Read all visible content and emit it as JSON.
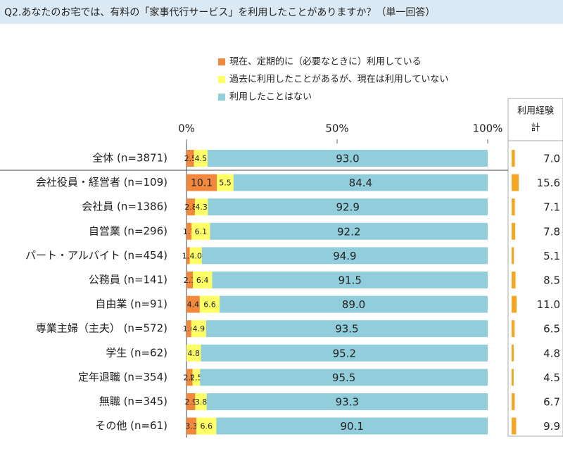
{
  "chart_data": {
    "type": "stacked-bar-horizontal",
    "title": "Q2.あなたのお宅では、有料の「家事代行サービス」を利用したことがありますか？（単一回答）",
    "categories": [
      "全体 (n=3871)",
      "会社役員・経営者 (n=109)",
      "会社員 (n=1386)",
      "自営業 (n=296)",
      "パート・アルバイト (n=454)",
      "公務員 (n=141)",
      "自由業 (n=91)",
      "専業主婦（主夫） (n=572)",
      "学生 (n=62)",
      "定年退職 (n=354)",
      "無職 (n=345)",
      "その他 (n=61)"
    ],
    "series": [
      {
        "name": "現在、定期的に（必要なときに）利用している",
        "color": "#f0883e",
        "values": [
          2.5,
          10.1,
          2.8,
          1.7,
          1.1,
          2.1,
          4.4,
          1.6,
          null,
          2.0,
          2.9,
          3.3
        ],
        "value_labels": [
          "2.5",
          "10.1",
          "2.8",
          "1.7",
          "1.1",
          "2.1",
          "4.4",
          "1.6",
          null,
          "2.0",
          "2.9",
          "3.3"
        ]
      },
      {
        "name": "過去に利用したことがあるが、現在は利用していない",
        "color": "#ffff66",
        "values": [
          4.5,
          5.5,
          4.3,
          6.1,
          4.0,
          6.4,
          6.6,
          4.9,
          4.8,
          2.5,
          3.8,
          6.6
        ],
        "value_labels": [
          "4.5",
          "5.5",
          "4.3",
          "6.1",
          "4.0",
          "6.4",
          "6.6",
          "4.9",
          "4.8",
          "2.5",
          "3.8",
          "6.6"
        ]
      },
      {
        "name": "利用したことはない",
        "color": "#92cddc",
        "values": [
          93.0,
          84.4,
          92.9,
          92.2,
          94.9,
          91.5,
          89.0,
          93.5,
          95.2,
          95.5,
          93.3,
          90.1
        ],
        "value_labels": [
          "93.0",
          "84.4",
          "92.9",
          "92.2",
          "94.9",
          "91.5",
          "89.0",
          "93.5",
          "95.2",
          "95.5",
          "93.3",
          "90.1"
        ]
      }
    ],
    "total_header": [
      "利用経験",
      "計"
    ],
    "totals": {
      "color": "#f5a623",
      "values": [
        7.0,
        15.6,
        7.1,
        7.8,
        5.1,
        8.5,
        11.0,
        6.5,
        4.8,
        4.5,
        6.7,
        9.9
      ],
      "value_labels": [
        "7.0",
        "15.6",
        "7.1",
        "7.8",
        "5.1",
        "8.5",
        "11.0",
        "6.5",
        "4.8",
        "4.5",
        "6.7",
        "9.9"
      ]
    },
    "xlim": [
      0,
      100
    ],
    "xticks": [
      {
        "value": 0,
        "label": "0%"
      },
      {
        "value": 50,
        "label": "50%"
      },
      {
        "value": 100,
        "label": "100%"
      }
    ]
  }
}
